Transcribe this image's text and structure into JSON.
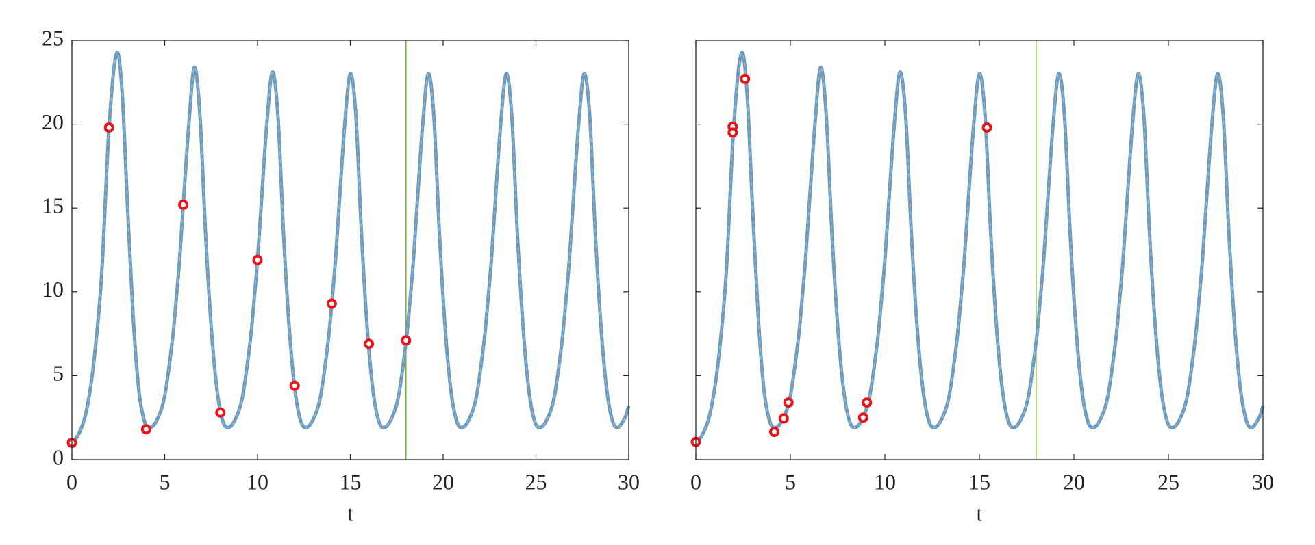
{
  "chart_data": [
    {
      "type": "line",
      "xlabel": "t",
      "xlim": [
        0,
        30
      ],
      "ylim": [
        0,
        25
      ],
      "xticks": [
        0,
        5,
        10,
        15,
        20,
        25,
        30
      ],
      "yticks": [
        0,
        5,
        10,
        15,
        20,
        25
      ],
      "ytick_labels": true,
      "vline": 18,
      "vline_color": "#77ac30",
      "x": [
        0,
        0.4,
        0.8,
        1.2,
        1.6,
        2.0,
        2.4,
        2.7,
        3.0,
        3.3,
        3.6,
        3.9,
        4.2,
        4.6,
        5.0,
        5.4,
        5.6,
        5.8,
        6.0,
        6.3,
        6.6,
        6.9,
        7.2,
        7.5,
        7.8,
        8.1,
        8.4,
        8.8,
        9.2,
        9.6,
        9.8,
        10.0,
        10.2,
        10.5,
        10.8,
        11.1,
        11.4,
        11.7,
        12.0,
        12.3,
        12.6,
        13.0,
        13.4,
        13.8,
        14.0,
        14.2,
        14.4,
        14.7,
        15.0,
        15.3,
        15.6,
        15.9,
        16.2,
        16.5,
        16.8,
        17.2,
        17.6,
        18.0,
        18.2,
        18.4,
        18.6,
        18.9,
        19.2,
        19.5,
        19.8,
        20.1,
        20.4,
        20.7,
        21.0,
        21.4,
        21.8,
        22.2,
        22.4,
        22.6,
        22.8,
        23.1,
        23.4,
        23.7,
        24.0,
        24.3,
        24.6,
        24.9,
        25.2,
        25.6,
        26.0,
        26.4,
        26.6,
        26.8,
        27.0,
        27.3,
        27.6,
        27.9,
        28.2,
        28.5,
        28.8,
        29.1,
        29.4,
        29.8,
        30.0
      ],
      "series": [
        {
          "color": "#5a9fd6",
          "dash_color": "#f0a060",
          "values": [
            1.0,
            1.6,
            3.0,
            6.0,
            11.0,
            19.8,
            24.2,
            22.0,
            15.0,
            8.5,
            4.2,
            2.3,
            1.9,
            2.4,
            3.8,
            7.0,
            9.3,
            11.9,
            15.2,
            20.0,
            23.4,
            20.5,
            13.5,
            8.0,
            4.3,
            2.4,
            1.9,
            2.4,
            3.8,
            7.0,
            9.3,
            11.9,
            15.2,
            20.0,
            23.1,
            20.5,
            13.5,
            8.0,
            4.3,
            2.4,
            1.9,
            2.4,
            3.8,
            7.0,
            9.3,
            11.9,
            15.2,
            20.0,
            23.0,
            20.5,
            13.5,
            8.0,
            4.3,
            2.4,
            1.9,
            2.4,
            3.8,
            7.0,
            9.3,
            11.9,
            15.2,
            20.0,
            23.0,
            20.5,
            13.5,
            8.0,
            4.3,
            2.4,
            1.9,
            2.4,
            3.8,
            7.0,
            9.3,
            11.9,
            15.2,
            20.0,
            23.0,
            20.5,
            13.5,
            8.0,
            4.3,
            2.4,
            1.9,
            2.4,
            3.8,
            7.0,
            9.3,
            11.9,
            15.2,
            20.0,
            23.0,
            20.5,
            13.5,
            8.0,
            4.3,
            2.4,
            1.9,
            2.5,
            3.2
          ]
        }
      ],
      "points": {
        "color": "#e8141c",
        "x": [
          0,
          2,
          4,
          6,
          8,
          10,
          12,
          14,
          16,
          18
        ],
        "values": [
          1.0,
          19.8,
          1.8,
          15.2,
          2.8,
          11.9,
          4.4,
          9.3,
          6.9,
          7.1
        ]
      }
    },
    {
      "type": "line",
      "xlabel": "t",
      "xlim": [
        0,
        30
      ],
      "ylim": [
        0,
        25
      ],
      "xticks": [
        0,
        5,
        10,
        15,
        20,
        25,
        30
      ],
      "yticks": [
        0,
        5,
        10,
        15,
        20,
        25
      ],
      "ytick_labels": false,
      "vline": 18,
      "vline_color": "#77ac30",
      "x": [
        0,
        0.4,
        0.8,
        1.2,
        1.6,
        2.0,
        2.4,
        2.7,
        3.0,
        3.3,
        3.6,
        3.9,
        4.2,
        4.6,
        5.0,
        5.4,
        5.6,
        5.8,
        6.0,
        6.3,
        6.6,
        6.9,
        7.2,
        7.5,
        7.8,
        8.1,
        8.4,
        8.8,
        9.2,
        9.6,
        9.8,
        10.0,
        10.2,
        10.5,
        10.8,
        11.1,
        11.4,
        11.7,
        12.0,
        12.3,
        12.6,
        13.0,
        13.4,
        13.8,
        14.0,
        14.2,
        14.4,
        14.7,
        15.0,
        15.3,
        15.6,
        15.9,
        16.2,
        16.5,
        16.8,
        17.2,
        17.6,
        18.0,
        18.2,
        18.4,
        18.6,
        18.9,
        19.2,
        19.5,
        19.8,
        20.1,
        20.4,
        20.7,
        21.0,
        21.4,
        21.8,
        22.2,
        22.4,
        22.6,
        22.8,
        23.1,
        23.4,
        23.7,
        24.0,
        24.3,
        24.6,
        24.9,
        25.2,
        25.6,
        26.0,
        26.4,
        26.6,
        26.8,
        27.0,
        27.3,
        27.6,
        27.9,
        28.2,
        28.5,
        28.8,
        29.1,
        29.4,
        29.8,
        30.0
      ],
      "series": [
        {
          "color": "#5a9fd6",
          "dash_color": "#f0a060",
          "values": [
            1.0,
            1.6,
            3.0,
            6.0,
            11.0,
            19.8,
            24.2,
            22.0,
            15.0,
            8.5,
            4.2,
            2.3,
            1.9,
            2.4,
            3.8,
            7.0,
            9.3,
            11.9,
            15.2,
            20.0,
            23.4,
            20.5,
            13.5,
            8.0,
            4.3,
            2.4,
            1.9,
            2.4,
            3.8,
            7.0,
            9.3,
            11.9,
            15.2,
            20.0,
            23.1,
            20.5,
            13.5,
            8.0,
            4.3,
            2.4,
            1.9,
            2.4,
            3.8,
            7.0,
            9.3,
            11.9,
            15.2,
            20.0,
            23.0,
            20.5,
            13.5,
            8.0,
            4.3,
            2.4,
            1.9,
            2.4,
            3.8,
            7.0,
            9.3,
            11.9,
            15.2,
            20.0,
            23.0,
            20.5,
            13.5,
            8.0,
            4.3,
            2.4,
            1.9,
            2.4,
            3.8,
            7.0,
            9.3,
            11.9,
            15.2,
            20.0,
            23.0,
            20.5,
            13.5,
            8.0,
            4.3,
            2.4,
            1.9,
            2.4,
            3.8,
            7.0,
            9.3,
            11.9,
            15.2,
            20.0,
            23.0,
            20.5,
            13.5,
            8.0,
            4.3,
            2.4,
            1.9,
            2.5,
            3.2
          ]
        }
      ],
      "points": {
        "color": "#e8141c",
        "x": [
          0,
          1.95,
          1.95,
          2.6,
          4.15,
          4.65,
          4.9,
          8.85,
          9.05,
          15.4
        ],
        "values": [
          1.05,
          19.85,
          19.5,
          22.7,
          1.65,
          2.45,
          3.4,
          2.5,
          3.4,
          19.8
        ]
      }
    }
  ]
}
